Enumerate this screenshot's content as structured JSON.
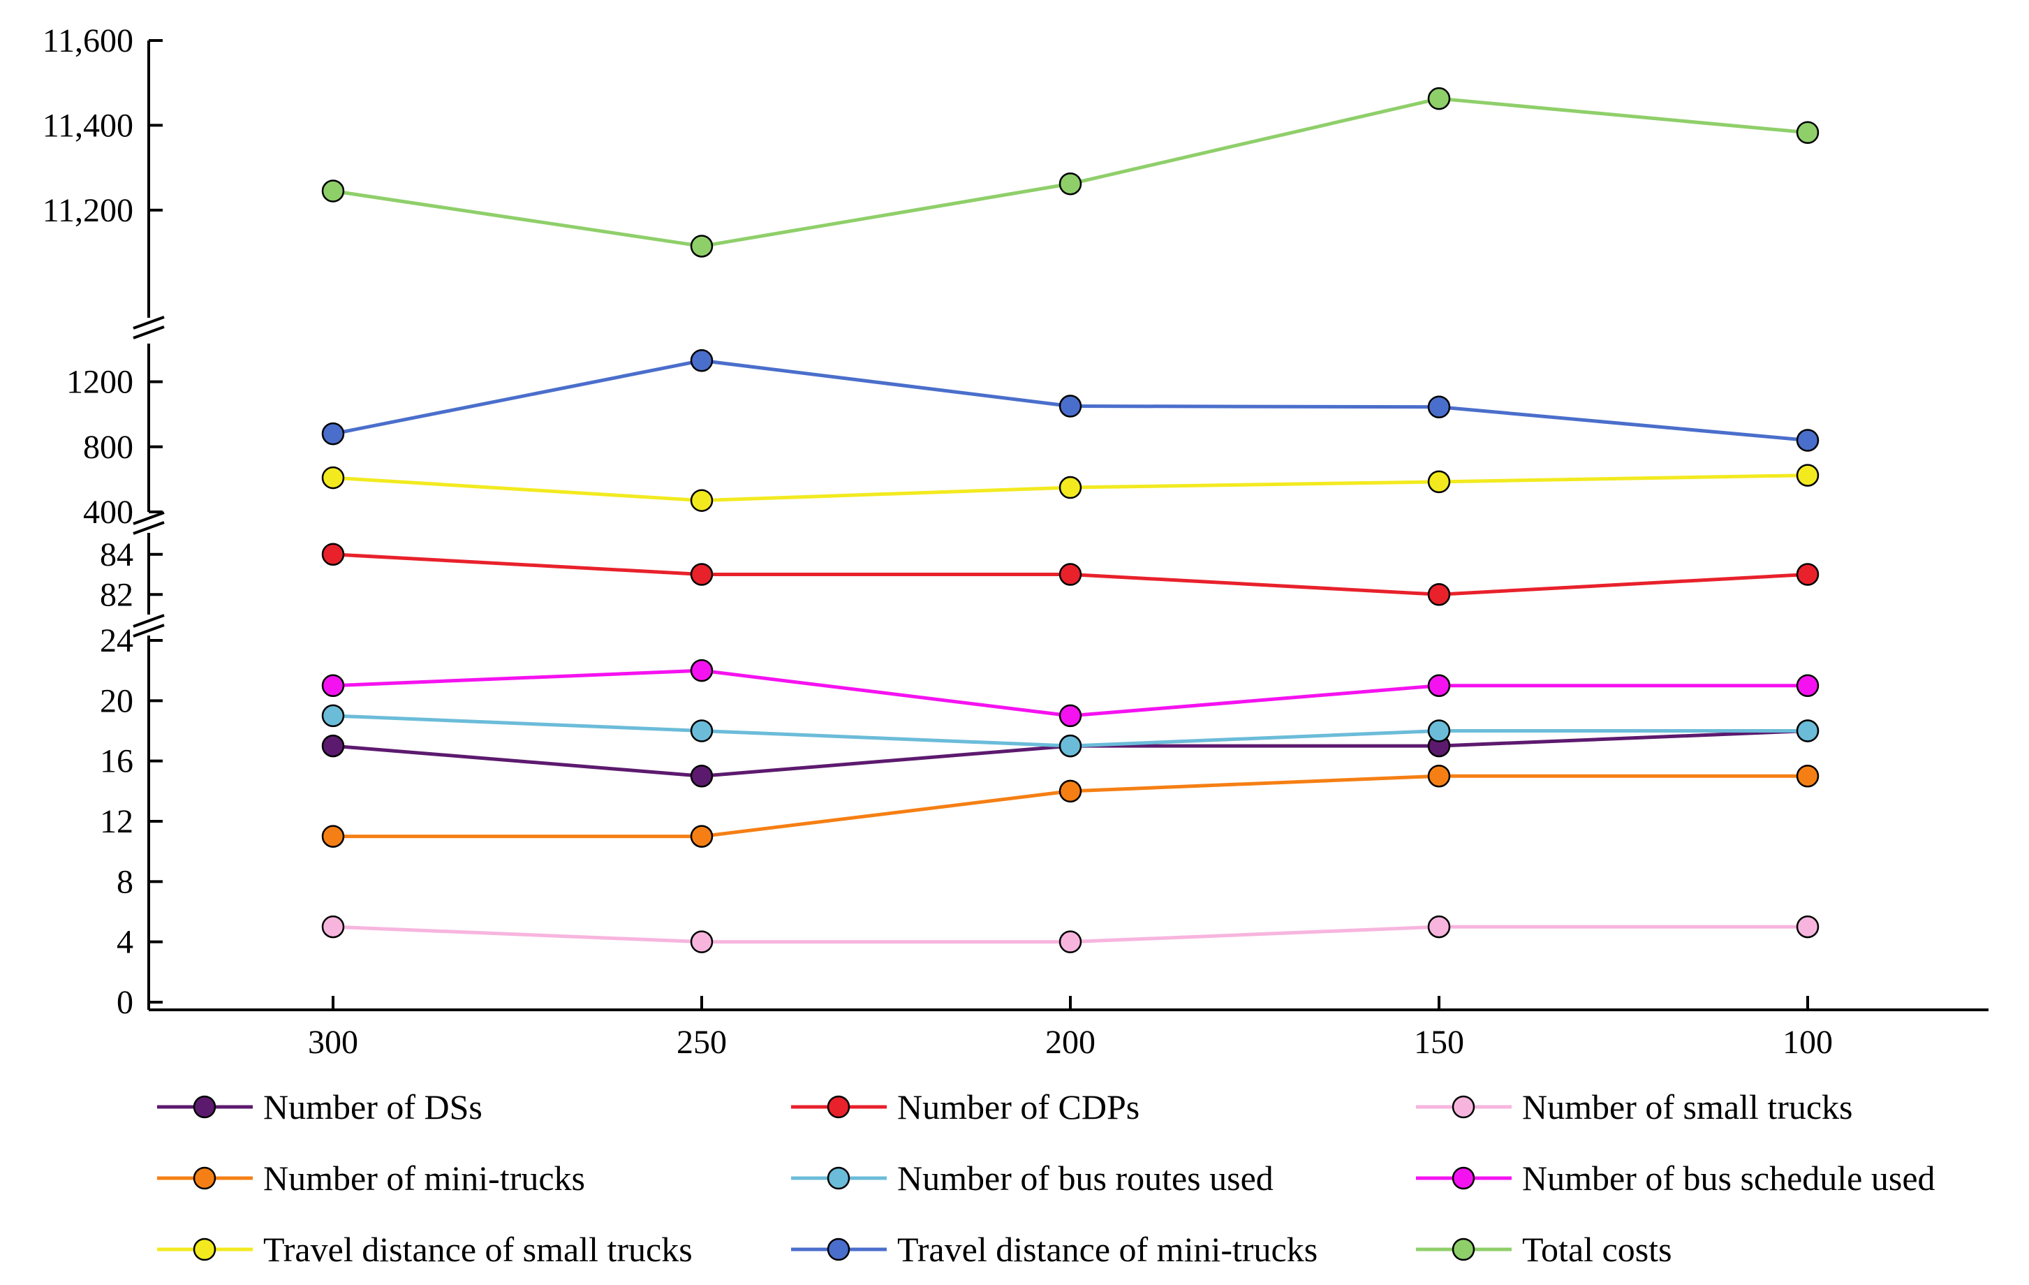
{
  "chart_data": {
    "type": "line",
    "title": "",
    "xlabel": "",
    "ylabel": "",
    "categories": [
      "300",
      "250",
      "200",
      "150",
      "100"
    ],
    "y_axis_segments": [
      {
        "name": "counts",
        "ylim": [
          0,
          24
        ],
        "ticks": [
          0,
          4,
          8,
          12,
          16,
          20,
          24
        ],
        "tick_labels": [
          "0",
          "4",
          "8",
          "12",
          "16",
          "20",
          "24"
        ]
      },
      {
        "name": "cdps",
        "ylim": [
          81,
          85
        ],
        "ticks": [
          82,
          84
        ],
        "tick_labels": [
          "82",
          "84"
        ]
      },
      {
        "name": "distances",
        "ylim": [
          400,
          1400
        ],
        "ticks": [
          400,
          800,
          1200
        ],
        "tick_labels": [
          "400",
          "800",
          "1200"
        ]
      },
      {
        "name": "costs",
        "ylim": [
          10900,
          11600
        ],
        "ticks": [
          11200,
          11400,
          11600
        ],
        "tick_labels": [
          "11,200",
          "11,400",
          "11,600"
        ]
      }
    ],
    "series": [
      {
        "name": "Number of DSs",
        "segment": "counts",
        "color": "#5c1a6e",
        "values": [
          17,
          15,
          17,
          17,
          18
        ]
      },
      {
        "name": "Number of CDPs",
        "segment": "cdps",
        "color": "#e8212b",
        "values": [
          84,
          83,
          83,
          82,
          83
        ]
      },
      {
        "name": "Number of small trucks",
        "segment": "counts",
        "color": "#f7b5de",
        "values": [
          5,
          4,
          4,
          5,
          5
        ]
      },
      {
        "name": "Number of mini-trucks",
        "segment": "counts",
        "color": "#f57f14",
        "values": [
          11,
          11,
          14,
          15,
          15
        ]
      },
      {
        "name": "Number of bus routes used",
        "segment": "counts",
        "color": "#6bbcd9",
        "values": [
          19,
          18,
          17,
          18,
          18
        ]
      },
      {
        "name": "Number of bus schedule used",
        "segment": "counts",
        "color": "#f512f0",
        "values": [
          21,
          22,
          19,
          21,
          21
        ]
      },
      {
        "name": "Travel distance of small trucks",
        "segment": "distances",
        "color": "#f2ea1f",
        "values": [
          610,
          470,
          550,
          585,
          625
        ]
      },
      {
        "name": "Travel distance of mini-trucks",
        "segment": "distances",
        "color": "#4a6ecb",
        "values": [
          880,
          1330,
          1050,
          1045,
          840
        ]
      },
      {
        "name": "Total costs",
        "segment": "costs",
        "color": "#8fcf6a",
        "values": [
          11245,
          11115,
          11262,
          11463,
          11383
        ]
      }
    ],
    "marker": "circle",
    "legend_position": "bottom",
    "grid": false
  }
}
